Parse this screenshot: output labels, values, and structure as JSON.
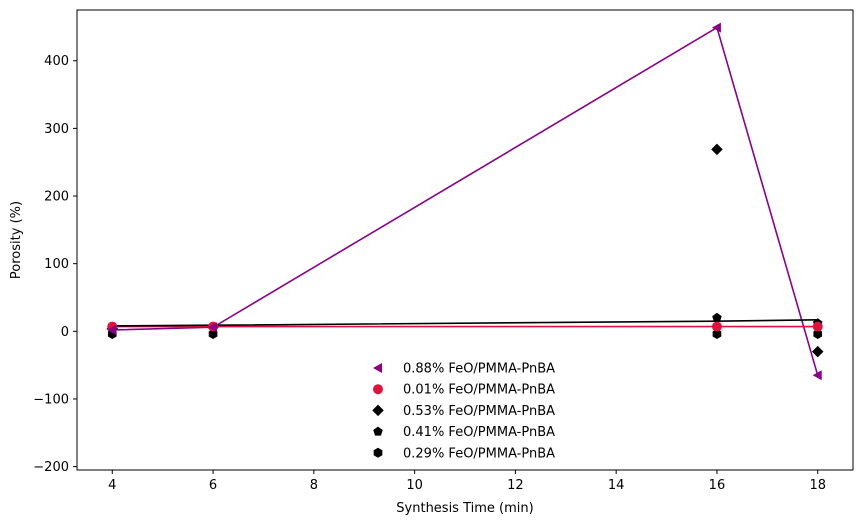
{
  "chart_data": {
    "type": "scatter",
    "xlabel": "Synthesis Time (min)",
    "ylabel": "Porosity (%)",
    "xlim": [
      3.3,
      18.7
    ],
    "ylim": [
      -205,
      475
    ],
    "xticks": [
      4,
      6,
      8,
      10,
      12,
      14,
      16,
      18
    ],
    "yticks": [
      -200,
      -100,
      0,
      100,
      200,
      300,
      400
    ],
    "ytick_labels": [
      "−200",
      "−100",
      "0",
      "100",
      "200",
      "300",
      "400"
    ],
    "grid": false,
    "legend_position": "lower-center",
    "series": [
      {
        "name": "0.88% FeO/PMMA-PnBA",
        "marker": "triangle-left",
        "color": "#8B008B",
        "x": [
          4,
          6,
          16,
          18
        ],
        "y": [
          2,
          6,
          449,
          -65
        ],
        "line": {
          "x": [
            4,
            6,
            16,
            18
          ],
          "y": [
            2,
            6,
            449,
            -65
          ]
        }
      },
      {
        "name": "0.01% FeO/PMMA-PnBA",
        "marker": "circle",
        "color": "#DC143C",
        "x": [
          4,
          6,
          16,
          18
        ],
        "y": [
          7,
          7,
          7,
          7
        ],
        "line": {
          "x": [
            4,
            6,
            16,
            18
          ],
          "y": [
            7,
            7,
            7,
            7
          ]
        }
      },
      {
        "name": "0.53% FeO/PMMA-PnBA",
        "marker": "diamond",
        "color": "#000000",
        "x": [
          4,
          6,
          16,
          18
        ],
        "y": [
          4,
          6,
          269,
          -30
        ],
        "line": null
      },
      {
        "name": "0.41% FeO/PMMA-PnBA",
        "marker": "pentagon",
        "color": "#000000",
        "x": [
          4,
          6,
          16,
          18
        ],
        "y": [
          5,
          6,
          20,
          12
        ],
        "line": null
      },
      {
        "name": "0.29% FeO/PMMA-PnBA",
        "marker": "hexagon",
        "color": "#000000",
        "x": [
          4,
          6,
          16,
          18
        ],
        "y": [
          -4,
          -4,
          -4,
          -4
        ],
        "line": null
      }
    ],
    "fit_line": {
      "color": "#000000",
      "x": [
        4,
        6,
        16,
        18
      ],
      "y": [
        8,
        9,
        15,
        17
      ]
    }
  }
}
